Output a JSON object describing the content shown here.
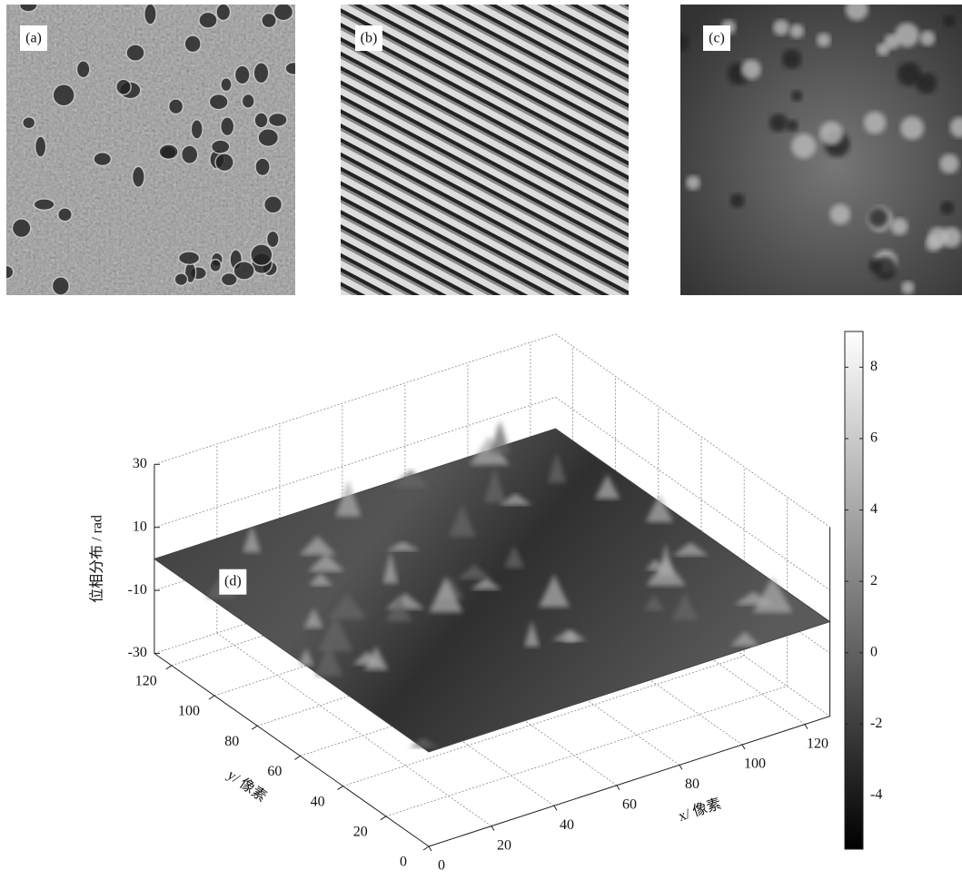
{
  "panels": [
    {
      "label": "(a)"
    },
    {
      "label": "(b)"
    },
    {
      "label": "(c)"
    }
  ],
  "chart_data": {
    "type": "surface",
    "label": "(d)",
    "xlabel": "x/ 像素",
    "ylabel": "y/ 像素",
    "zlabel": "位相分布 / rad",
    "xlim": [
      0,
      128
    ],
    "xticks": [
      0,
      20,
      40,
      60,
      80,
      100,
      120
    ],
    "ylim": [
      0,
      128
    ],
    "yticks": [
      0,
      20,
      40,
      60,
      80,
      100,
      120
    ],
    "zlim": [
      -30,
      30
    ],
    "zticks": [
      -30,
      -10,
      10,
      30
    ],
    "colorbar": {
      "lim": [
        -5.5,
        9
      ],
      "ticks": [
        -4,
        -2,
        0,
        2,
        4,
        6,
        8
      ]
    },
    "grid": true
  }
}
